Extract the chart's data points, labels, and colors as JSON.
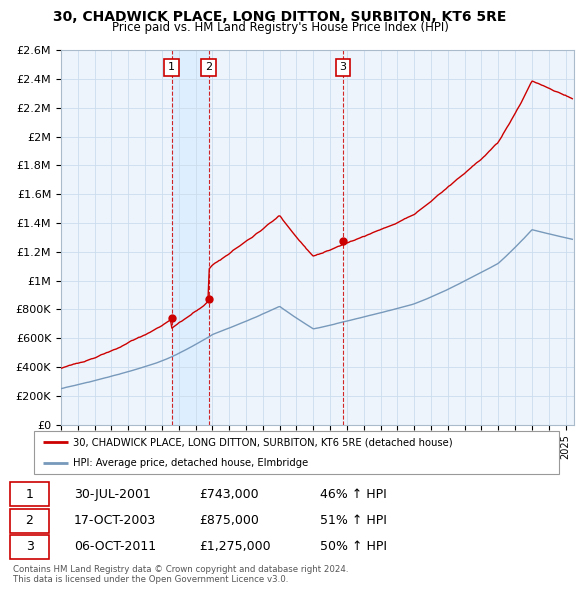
{
  "title_line1": "30, CHADWICK PLACE, LONG DITTON, SURBITON, KT6 5RE",
  "title_line2": "Price paid vs. HM Land Registry's House Price Index (HPI)",
  "ylabel_ticks": [
    "£0",
    "£200K",
    "£400K",
    "£600K",
    "£800K",
    "£1M",
    "£1.2M",
    "£1.4M",
    "£1.6M",
    "£1.8M",
    "£2M",
    "£2.2M",
    "£2.4M",
    "£2.6M"
  ],
  "ytick_values": [
    0,
    200000,
    400000,
    600000,
    800000,
    1000000,
    1200000,
    1400000,
    1600000,
    1800000,
    2000000,
    2200000,
    2400000,
    2600000
  ],
  "xlim_start": 1995.0,
  "xlim_end": 2025.5,
  "ylim_min": 0,
  "ylim_max": 2600000,
  "red_line_color": "#cc0000",
  "blue_line_color": "#7799bb",
  "shade_color": "#ddeeff",
  "purchase_markers": [
    {
      "year": 2001.58,
      "price": 743000,
      "label": "1"
    },
    {
      "year": 2003.79,
      "price": 875000,
      "label": "2"
    },
    {
      "year": 2011.76,
      "price": 1275000,
      "label": "3"
    }
  ],
  "vline_color": "#cc0000",
  "legend_entries": [
    "30, CHADWICK PLACE, LONG DITTON, SURBITON, KT6 5RE (detached house)",
    "HPI: Average price, detached house, Elmbridge"
  ],
  "table_rows": [
    [
      "1",
      "30-JUL-2001",
      "£743,000",
      "46% ↑ HPI"
    ],
    [
      "2",
      "17-OCT-2003",
      "£875,000",
      "51% ↑ HPI"
    ],
    [
      "3",
      "06-OCT-2011",
      "£1,275,000",
      "50% ↑ HPI"
    ]
  ],
  "footer_text": "Contains HM Land Registry data © Crown copyright and database right 2024.\nThis data is licensed under the Open Government Licence v3.0.",
  "grid_color": "#ccddee",
  "bg_color": "#eef4fb"
}
